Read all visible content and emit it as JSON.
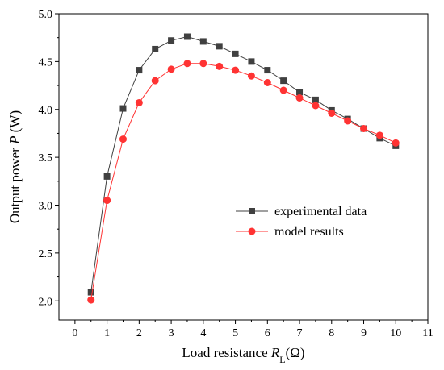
{
  "chart_data": {
    "type": "line",
    "x": [
      0.5,
      1,
      1.5,
      2,
      2.5,
      3,
      3.5,
      4,
      4.5,
      5,
      5.5,
      6,
      6.5,
      7,
      7.5,
      8,
      8.5,
      9,
      9.5,
      10
    ],
    "series": [
      {
        "name": "experimental data",
        "marker": "square",
        "color": "#404040",
        "values": [
          2.09,
          3.3,
          4.01,
          4.41,
          4.63,
          4.72,
          4.76,
          4.71,
          4.66,
          4.58,
          4.5,
          4.41,
          4.3,
          4.18,
          4.1,
          3.99,
          3.9,
          3.8,
          3.7,
          3.62
        ]
      },
      {
        "name": "model results",
        "marker": "circle",
        "color": "#ff3333",
        "values": [
          2.01,
          3.05,
          3.69,
          4.07,
          4.3,
          4.42,
          4.48,
          4.48,
          4.45,
          4.41,
          4.35,
          4.28,
          4.2,
          4.12,
          4.04,
          3.96,
          3.88,
          3.8,
          3.73,
          3.65
        ]
      }
    ],
    "xlabel_main": "Load resistance ",
    "xlabel_var": "R",
    "xlabel_sub": "L",
    "xlabel_unit": "(Ω)",
    "ylabel_main": "Output power ",
    "ylabel_var": "P",
    "ylabel_unit": " (W)",
    "xlim": [
      -0.5,
      11
    ],
    "ylim": [
      1.8,
      5.0
    ],
    "xticks": [
      0,
      1,
      2,
      3,
      4,
      5,
      6,
      7,
      8,
      9,
      10,
      11
    ],
    "yticks": [
      2.0,
      2.5,
      3.0,
      3.5,
      4.0,
      4.5,
      5.0
    ],
    "ytick_labels": [
      "2.0",
      "2.5",
      "3.0",
      "3.5",
      "4.0",
      "4.5",
      "5.0"
    ],
    "legend_position": "center-right",
    "grid": false
  }
}
